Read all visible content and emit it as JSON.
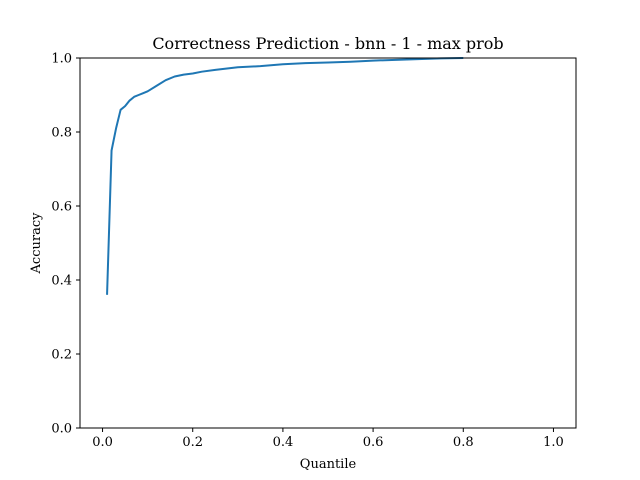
{
  "chart_data": {
    "type": "line",
    "title": "Correctness Prediction - bnn - 1 - max prob",
    "xlabel": "Quantile",
    "ylabel": "Accuracy",
    "xlim": [
      -0.05,
      1.05
    ],
    "ylim": [
      0.0,
      1.0
    ],
    "xticks": [
      0.0,
      0.2,
      0.4,
      0.6,
      0.8,
      1.0
    ],
    "xtick_labels": [
      "0.0",
      "0.2",
      "0.4",
      "0.6",
      "0.8",
      "1.0"
    ],
    "yticks": [
      0.0,
      0.2,
      0.4,
      0.6,
      0.8,
      1.0
    ],
    "ytick_labels": [
      "0.0",
      "0.2",
      "0.4",
      "0.6",
      "0.8",
      "1.0"
    ],
    "grid": false,
    "series": [
      {
        "color": "#1f77b4",
        "x": [
          0.01,
          0.02,
          0.03,
          0.04,
          0.05,
          0.06,
          0.07,
          0.08,
          0.09,
          0.1,
          0.12,
          0.14,
          0.16,
          0.18,
          0.2,
          0.22,
          0.25,
          0.3,
          0.35,
          0.4,
          0.45,
          0.5,
          0.55,
          0.6,
          0.65,
          0.7,
          0.75,
          0.8
        ],
        "y": [
          0.36,
          0.75,
          0.81,
          0.86,
          0.87,
          0.885,
          0.895,
          0.9,
          0.905,
          0.91,
          0.925,
          0.94,
          0.95,
          0.955,
          0.958,
          0.963,
          0.968,
          0.975,
          0.978,
          0.983,
          0.986,
          0.988,
          0.99,
          0.993,
          0.995,
          0.997,
          0.999,
          1.0
        ]
      }
    ]
  }
}
